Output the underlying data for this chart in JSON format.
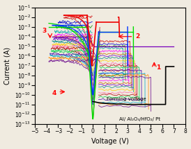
{
  "xlabel": "Voltage (V)",
  "ylabel": "Current (A)",
  "xlim": [
    -5,
    8
  ],
  "ylim_log": [
    -13,
    -1
  ],
  "xticks": [
    -5,
    -4,
    -3,
    -2,
    -1,
    0,
    1,
    2,
    3,
    4,
    5,
    6,
    7,
    8
  ],
  "annotation_device": "Al/ Al₂O₃/HfO₂/ Pt",
  "annotation_forming": "Forming voltage",
  "bg_color": "#f0ebe0",
  "plot_bg": "#f0ebe0",
  "forming_v": [
    0.0,
    0.5,
    1.0,
    1.5,
    2.0,
    2.5,
    3.0,
    3.5,
    4.0,
    4.5,
    5.0,
    5.5,
    6.0,
    6.28,
    6.29,
    6.5,
    7.0
  ],
  "forming_i": [
    2e-11,
    1.5e-11,
    1.3e-11,
    1.2e-11,
    1.1e-11,
    1.1e-11,
    1e-11,
    1e-11,
    1e-11,
    1e-11,
    1e-11,
    1e-11,
    1e-11,
    1e-11,
    8e-08,
    8e-08,
    8e-08
  ]
}
